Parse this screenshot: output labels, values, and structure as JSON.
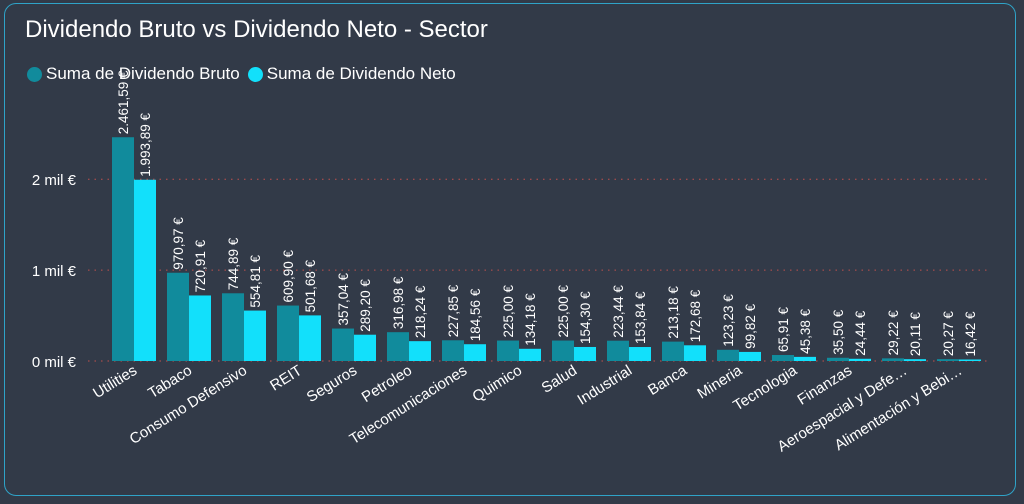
{
  "title": "Dividendo Bruto vs Dividendo Neto - Sector",
  "legend": [
    {
      "label": "Suma de Dividendo Bruto",
      "color": "#118b9c"
    },
    {
      "label": "Suma de Dividendo Neto",
      "color": "#12e0fb"
    }
  ],
  "chart_data": {
    "type": "bar",
    "categories": [
      "Utilities",
      "Tabaco",
      "Consumo Defensivo",
      "REIT",
      "Seguros",
      "Petroleo",
      "Telecomunicaciones",
      "Quimico",
      "Salud",
      "Industrial",
      "Banca",
      "Mineria",
      "Tecnologia",
      "Finanzas",
      "Aeroespacial y Defe…",
      "Alimentación y Bebi…"
    ],
    "series": [
      {
        "name": "Suma de Dividendo Bruto",
        "color": "#118b9c",
        "values": [
          2461.59,
          970.97,
          744.89,
          609.9,
          357.04,
          316.98,
          227.85,
          225.0,
          225.0,
          223.44,
          213.18,
          123.23,
          65.91,
          35.5,
          29.22,
          20.27
        ],
        "labels": [
          "2.461,59 €",
          "970,97 €",
          "744,89 €",
          "609,90 €",
          "357,04 €",
          "316,98 €",
          "227,85 €",
          "225,00 €",
          "225,00 €",
          "223,44 €",
          "213,18 €",
          "123,23 €",
          "65,91 €",
          "35,50 €",
          "29,22 €",
          "20,27 €"
        ]
      },
      {
        "name": "Suma de Dividendo Neto",
        "color": "#12e0fb",
        "values": [
          1993.89,
          720.91,
          554.81,
          501.68,
          289.2,
          218.24,
          184.56,
          134.18,
          154.3,
          153.84,
          172.68,
          99.82,
          45.38,
          24.44,
          20.11,
          16.42
        ],
        "labels": [
          "1.993,89 €",
          "720,91 €",
          "554,81 €",
          "501,68 €",
          "289,20 €",
          "218,24 €",
          "184,56 €",
          "134,18 €",
          "154,30 €",
          "153,84 €",
          "172,68 €",
          "99,82 €",
          "45,38 €",
          "24,44 €",
          "20,11 €",
          "16,42 €"
        ]
      }
    ],
    "y_ticks": [
      {
        "value": 0,
        "label": "0 mil €"
      },
      {
        "value": 1000,
        "label": "1 mil €"
      },
      {
        "value": 2000,
        "label": "2 mil €"
      }
    ],
    "ylim": [
      0,
      2700
    ],
    "grid": "dotted horizontal",
    "legend_position": "top-left",
    "xlabel": "",
    "ylabel": ""
  }
}
